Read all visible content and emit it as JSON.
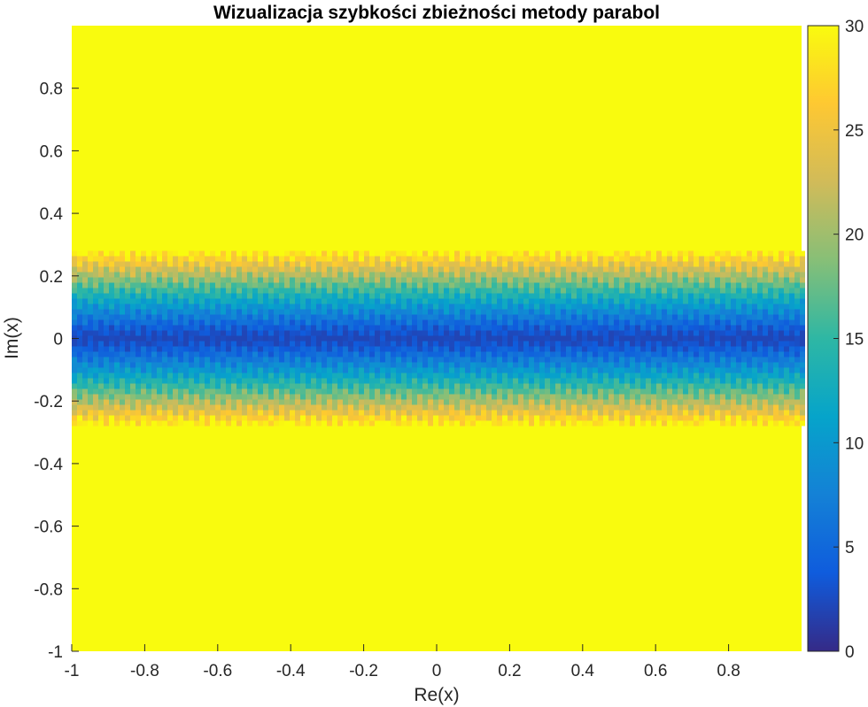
{
  "chart_data": {
    "type": "heatmap",
    "title": "Wizualizacja szybkości zbieżności metody parabol",
    "xlabel": "Re(x)",
    "ylabel": "Im(x)",
    "xlim": [
      -1,
      1
    ],
    "ylim": [
      -1,
      1
    ],
    "x_ticks": [
      "-1",
      "-0.8",
      "-0.6",
      "-0.4",
      "-0.2",
      "0",
      "0.2",
      "0.4",
      "0.6",
      "0.8"
    ],
    "x_tick_values": [
      -1,
      -0.8,
      -0.6,
      -0.4,
      -0.2,
      0,
      0.2,
      0.4,
      0.6,
      0.8
    ],
    "y_ticks": [
      "0.8",
      "0.6",
      "0.4",
      "0.2",
      "0",
      "-0.2",
      "-0.4",
      "-0.6",
      "-0.8",
      "-1"
    ],
    "y_tick_values": [
      0.8,
      0.6,
      0.4,
      0.2,
      0,
      -0.2,
      -0.4,
      -0.6,
      -0.8,
      -1
    ],
    "colorbar": {
      "min": 0,
      "max": 30,
      "ticks": [
        "0",
        "5",
        "10",
        "15",
        "20",
        "25",
        "30"
      ],
      "tick_values": [
        0,
        5,
        10,
        15,
        20,
        25,
        30
      ],
      "colormap": "parula",
      "colors": [
        "#352a87",
        "#0f5cdd",
        "#1481d6",
        "#06a4ca",
        "#2eb7a4",
        "#87bf77",
        "#d1bb59",
        "#fec832",
        "#f9fb0e"
      ]
    },
    "band": {
      "description_values": "iteration count grows with |Im(x)|; saturates at 30 outside band",
      "im_half_width": 0.28,
      "center_value": 2,
      "saturation_value": 30
    }
  }
}
